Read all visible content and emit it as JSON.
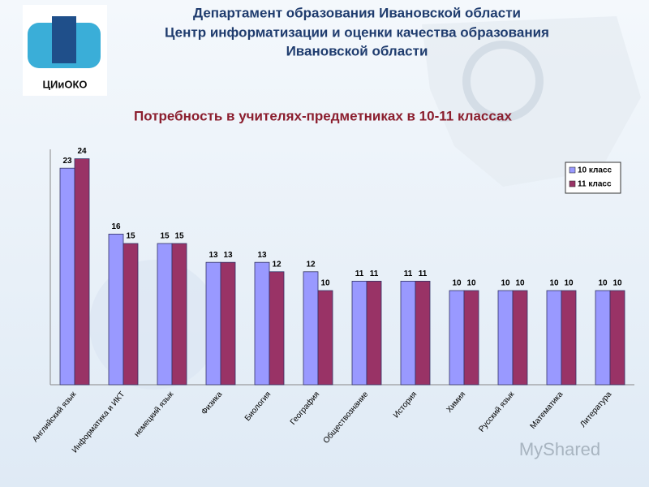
{
  "header": {
    "lines": [
      "Департамент образования Ивановской области",
      "Центр информатизации и оценки качества образования",
      "Ивановской области"
    ],
    "logo_text": "ЦИиОКО"
  },
  "watermark": "MyShared",
  "chart_data": {
    "type": "bar",
    "title": "Потребность в учителях-предметниках в 10-11 классах",
    "categories": [
      "Английский язык",
      "Информатика и ИКТ",
      "немецкий язык",
      "Физика",
      "Биология",
      "География",
      "Обществознание",
      "История",
      "Химия",
      "Русский язык",
      "Математика",
      "Литература"
    ],
    "series": [
      {
        "name": "10 класс",
        "color": "#9999ff",
        "values": [
          23,
          16,
          15,
          13,
          13,
          12,
          11,
          11,
          10,
          10,
          10,
          10
        ]
      },
      {
        "name": "11 класс",
        "color": "#993366",
        "values": [
          24,
          15,
          15,
          13,
          12,
          10,
          11,
          11,
          10,
          10,
          10,
          10
        ]
      }
    ],
    "ylim": [
      0,
      25
    ],
    "legend": "upper right"
  }
}
